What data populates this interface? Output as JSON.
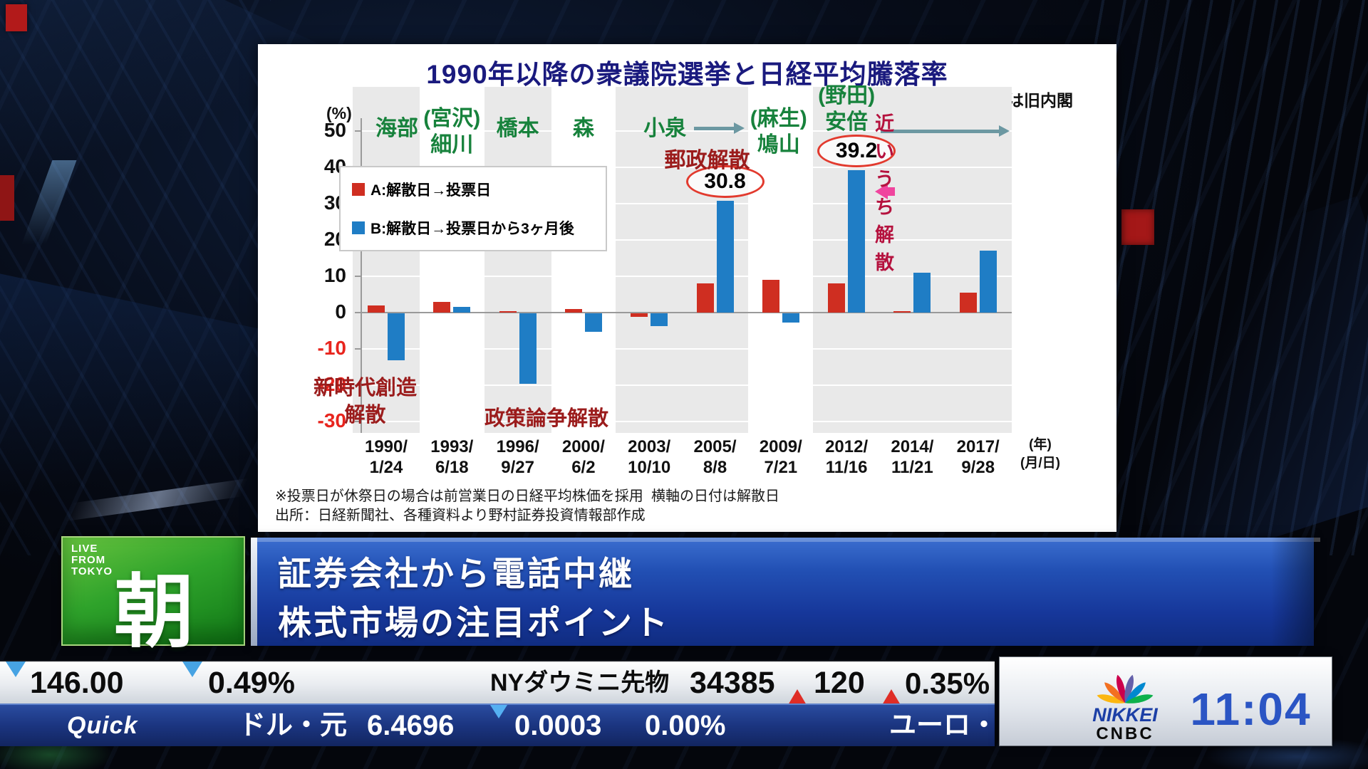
{
  "chart_data": {
    "type": "bar",
    "title": "1990年以降の衆議院選挙と日経平均騰落率",
    "note_top_right": "（　）は旧内閣",
    "unit_label": "(%)",
    "x_unit_label": "(年)\n(月/日)",
    "categories": [
      "1990/1/24",
      "1993/6/18",
      "1996/9/27",
      "2000/6/2",
      "2003/10/10",
      "2005/8/8",
      "2009/7/21",
      "2012/11/16",
      "2014/11/21",
      "2017/9/28"
    ],
    "series": [
      {
        "name": "A:解散日→投票日",
        "color": "#CF2E21",
        "values": [
          2,
          3,
          0.3,
          1,
          -1,
          8,
          9,
          8,
          0.3,
          5.5
        ]
      },
      {
        "name": "B:解散日→投票日から3ヶ月後",
        "color": "#1F7DC5",
        "values": [
          -13,
          1.5,
          -19.5,
          -5,
          -3.5,
          30.8,
          -2.5,
          39.2,
          11,
          17
        ]
      }
    ],
    "ylim": [
      -30,
      50
    ],
    "ytick_step": 10,
    "grid": false,
    "legend_position": "upper-left",
    "shaded_column_ranges": [
      [
        0,
        0
      ],
      [
        2,
        2
      ],
      [
        4,
        5
      ],
      [
        7,
        9
      ]
    ],
    "pm_labels": [
      {
        "col": 0,
        "lines": [
          "海部"
        ],
        "dx": 15
      },
      {
        "col": 1,
        "lines": [
          "(宮沢)",
          "細川"
        ],
        "dx": 0
      },
      {
        "col": 2,
        "lines": [
          "橋本"
        ],
        "dx": 0
      },
      {
        "col": 3,
        "lines": [
          "森"
        ],
        "dx": 0
      },
      {
        "col": 4,
        "lines": [
          "小泉"
        ],
        "dx": 22
      },
      {
        "col": 6,
        "lines": [
          "(麻生)",
          "鳩山"
        ],
        "dx": -3
      },
      {
        "col": 7,
        "lines": [
          "(野田)",
          "安倍"
        ],
        "dx": 0,
        "high": true
      }
    ],
    "value_callouts": [
      {
        "col": 5,
        "label": "30.8"
      },
      {
        "col": 7,
        "label": "39.2"
      }
    ],
    "annotations": [
      {
        "text": "郵政解散",
        "color": "#9B1C1C"
      },
      {
        "text": "近いうち解散",
        "color": "#B5123E"
      },
      {
        "text": "新時代創造\n解散",
        "color": "#9B1C1C"
      },
      {
        "text": "政策論争解散",
        "color": "#9B1C1C"
      }
    ],
    "footnotes": [
      "※投票日が休祭日の場合は前営業日の日経平均株価を採用",
      "横軸の日付は解散日",
      "出所：日経新聞社、各種資料より野村証券投資情報部作成"
    ]
  },
  "studio": {
    "badge": {
      "live": "LIVE\nFROM\nTOKYO",
      "kanji": "朝"
    },
    "banner": {
      "line1": "証券会社から電話中継",
      "line2": "株式市場の注目ポイント"
    },
    "ticker_top": {
      "change": "146.00",
      "change_pct": "0.49%",
      "label": "NYダウミニ先物",
      "price": "34385",
      "diff": "120",
      "diff_pct": "0.35%"
    },
    "ticker_bottom": {
      "source": "Quick",
      "pair": "ドル・元",
      "rate": "6.4696",
      "diff": "0.0003",
      "diff_pct": "0.00%",
      "next": "ユーロ・"
    },
    "brand": {
      "network_line1": "NIKKEI",
      "network_line2": "CNBC",
      "clock": "11:04"
    }
  }
}
